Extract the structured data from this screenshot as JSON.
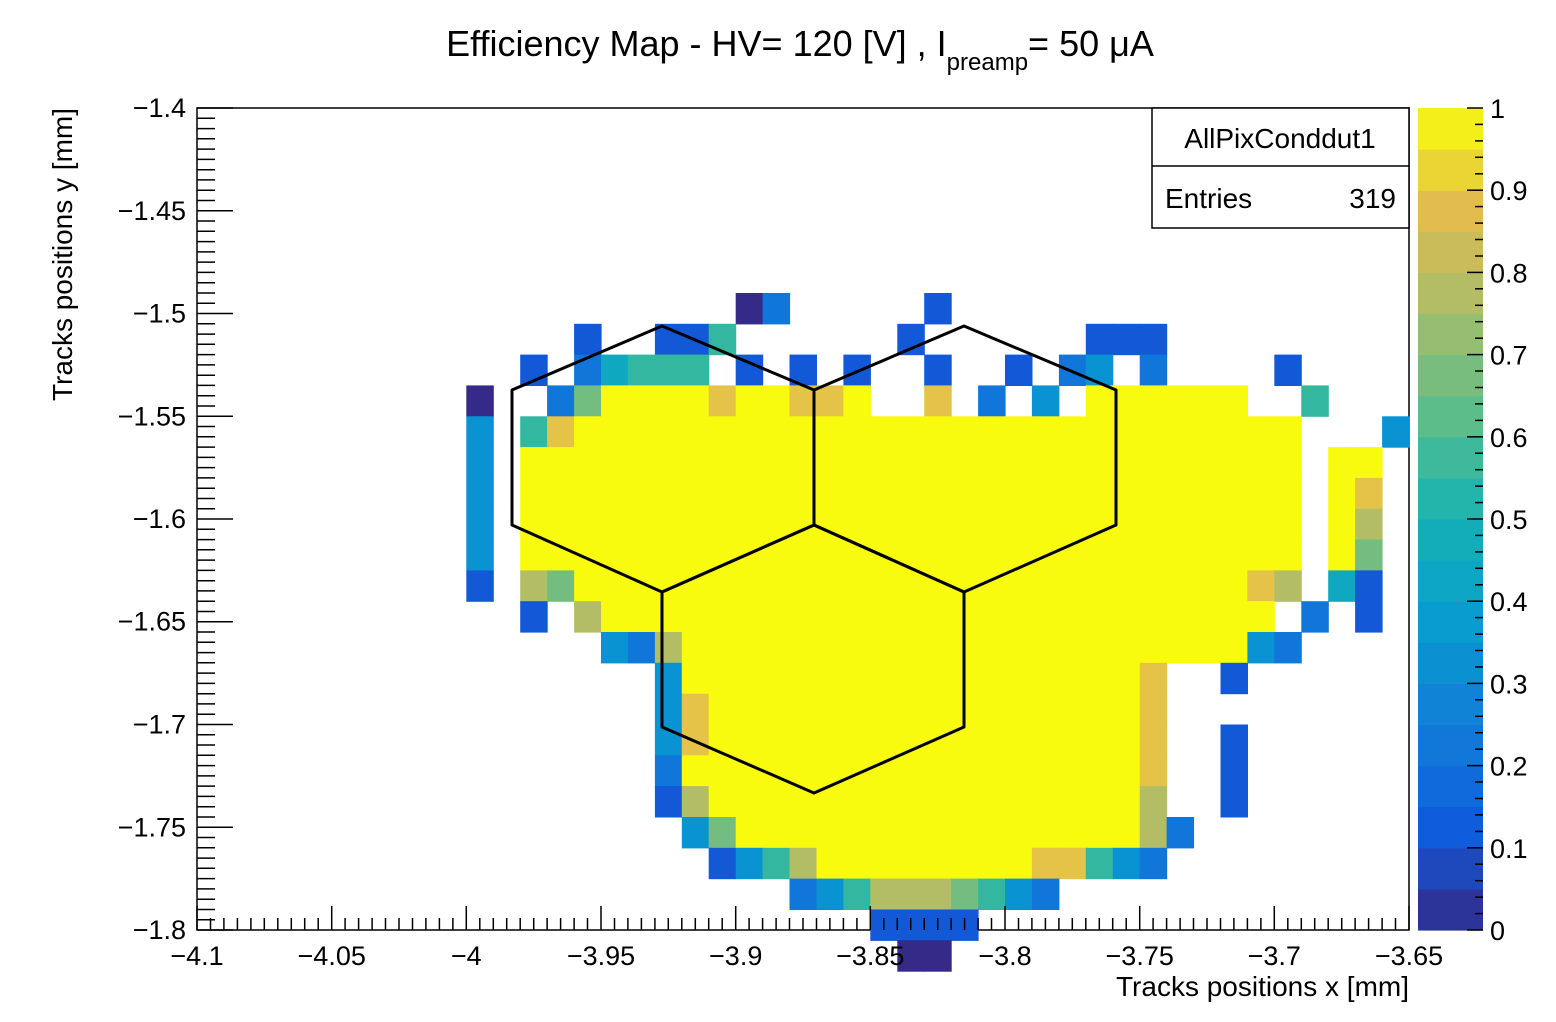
{
  "chart_data": {
    "type": "heatmap",
    "title": {
      "main": "Efficiency Map - HV= 120 [V] , I",
      "subscript": "preamp",
      "tail": "= 50 μA"
    },
    "xlabel": "Tracks positions x [mm]",
    "ylabel": "Tracks positions y [mm]",
    "xlim": [
      -4.1,
      -3.65
    ],
    "ylim": [
      -1.8,
      -1.4
    ],
    "x_ticks": [
      "−4.1",
      "−4.05",
      "−4",
      "−3.95",
      "−3.9",
      "−3.85",
      "−3.8",
      "−3.75",
      "−3.7",
      "−3.65"
    ],
    "y_ticks": [
      "−1.4",
      "−1.45",
      "−1.5",
      "−1.55",
      "−1.6",
      "−1.65",
      "−1.7",
      "−1.75",
      "−1.8"
    ],
    "x_tick_values": [
      -4.1,
      -4.05,
      -4.0,
      -3.95,
      -3.9,
      -3.85,
      -3.8,
      -3.75,
      -3.7,
      -3.65
    ],
    "y_tick_values": [
      -1.4,
      -1.45,
      -1.5,
      -1.55,
      -1.6,
      -1.65,
      -1.7,
      -1.75,
      -1.8
    ],
    "colorbar": {
      "range": [
        0,
        1
      ],
      "ticks": [
        "0",
        "0.1",
        "0.2",
        "0.3",
        "0.4",
        "0.5",
        "0.6",
        "0.7",
        "0.8",
        "0.9",
        "1"
      ]
    },
    "stats_box": {
      "name": "AllPixConddut1",
      "entries_label": "Entries",
      "entries_value": "319"
    },
    "grid": false,
    "legend_position": "top-right",
    "bins": {
      "x0": -4.0,
      "dx": 0.01,
      "y_top": -1.49,
      "dy": 0.015,
      "rows": [
        "..........02.....1..................",
        "....1..115......1......111.........",
        "..1.24555.1.1.1..1..1.23.2....1....",
        "0..269999899889..8.2.3.999999..5...",
        "3.58999999999999999999999999999...3",
        "3.99999999999999999999999999999.99.",
        "3.99999999999999999999999999999.98.",
        "3.99999999999999999999999999999.97.",
        "3.99999999999999999999999999999.96.",
        "1.76999999999999999999999999987.41.",
        "..1.79999999999999999999999999.2.1.",
        ".....32799999999999999999999932....",
        ".......3999999999999999998..1......",
        ".......3899999999999999998.........",
        ".......3899999999999999998..1......",
        ".......2999999999999999998..1......",
        ".......1799999999999999997..1......",
        "........3699999999999999972........",
        ".........13579999999988532.........",
        "............2357776532..............",
        "...............1111...............",
        "................00................."
      ]
    }
  }
}
